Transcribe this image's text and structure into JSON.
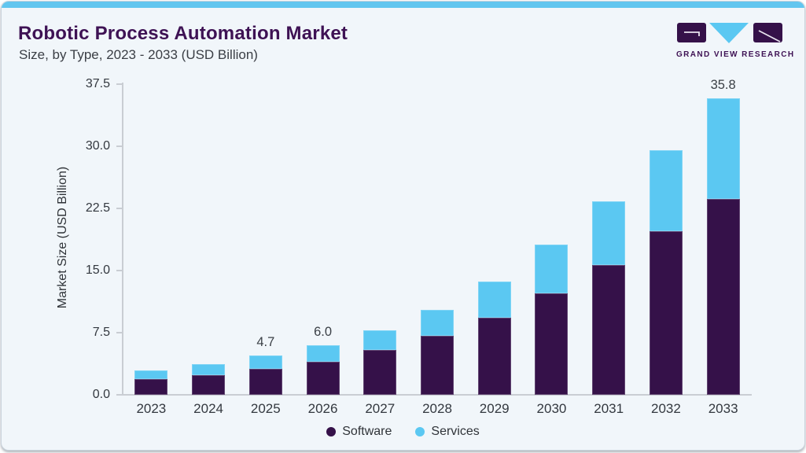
{
  "header": {
    "title": "Robotic Process Automation Market",
    "subtitle": "Size, by Type, 2023 - 2033 (USD Billion)"
  },
  "brand": {
    "name": "GRAND VIEW RESEARCH"
  },
  "colors": {
    "software": "#351149",
    "services": "#5bc8f2",
    "accent_strip": "#62c6ef",
    "title_text": "#3e1254",
    "body_text": "#3a3e45",
    "axis_line": "#c9cdd3",
    "card_bg": "#f1f6fa"
  },
  "chart_data": {
    "type": "bar",
    "stacked": true,
    "title": "Robotic Process Automation Market Size, by Type, 2023 - 2033 (USD Billion)",
    "categories": [
      "2023",
      "2024",
      "2025",
      "2026",
      "2027",
      "2028",
      "2029",
      "2030",
      "2031",
      "2032",
      "2033"
    ],
    "series": [
      {
        "name": "Software",
        "color_key": "software",
        "values": [
          1.9,
          2.4,
          3.1,
          4.0,
          5.4,
          7.1,
          9.3,
          12.2,
          15.7,
          19.7,
          23.6
        ]
      },
      {
        "name": "Services",
        "color_key": "services",
        "values": [
          1.0,
          1.3,
          1.6,
          2.0,
          2.4,
          3.2,
          4.4,
          5.9,
          7.7,
          9.8,
          12.2
        ]
      }
    ],
    "totals": [
      2.9,
      3.7,
      4.7,
      6.0,
      7.8,
      10.3,
      13.7,
      18.1,
      23.4,
      29.5,
      35.8
    ],
    "bar_labels": [
      "",
      "",
      "4.7",
      "6.0",
      "",
      "",
      "",
      "",
      "",
      "",
      "35.8"
    ],
    "ylabel": "Market Size (USD Billion)",
    "xlabel": "",
    "ylim": [
      0,
      37.5
    ],
    "yticks": [
      "0.0",
      "7.5",
      "15.0",
      "22.5",
      "30.0",
      "37.5"
    ],
    "grid": false,
    "legend_position": "bottom"
  }
}
